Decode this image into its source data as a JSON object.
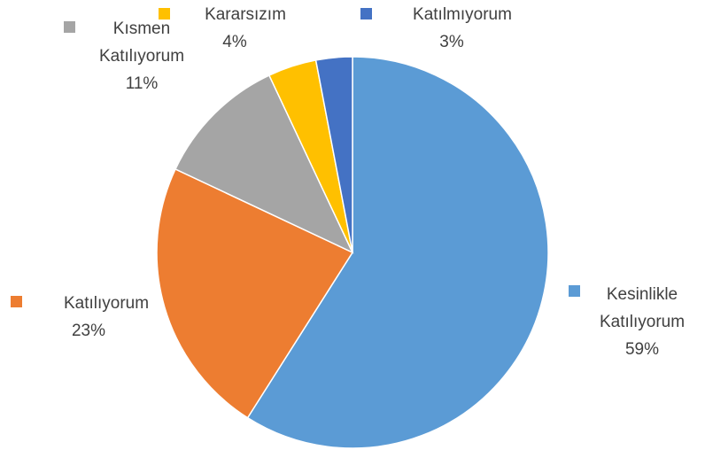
{
  "chart_data": {
    "type": "pie",
    "categories": [
      "Kesinlikle Katılıyorum",
      "Katılıyorum",
      "Kısmen Katılıyorum",
      "Kararsızım",
      "Katılmıyorum"
    ],
    "values": [
      59,
      23,
      11,
      4,
      3
    ],
    "value_labels": [
      "59%",
      "23%",
      "11%",
      "4%",
      "3%"
    ],
    "colors": [
      "#5b9bd5",
      "#ed7d31",
      "#a5a5a5",
      "#ffc000",
      "#4472c4"
    ]
  }
}
